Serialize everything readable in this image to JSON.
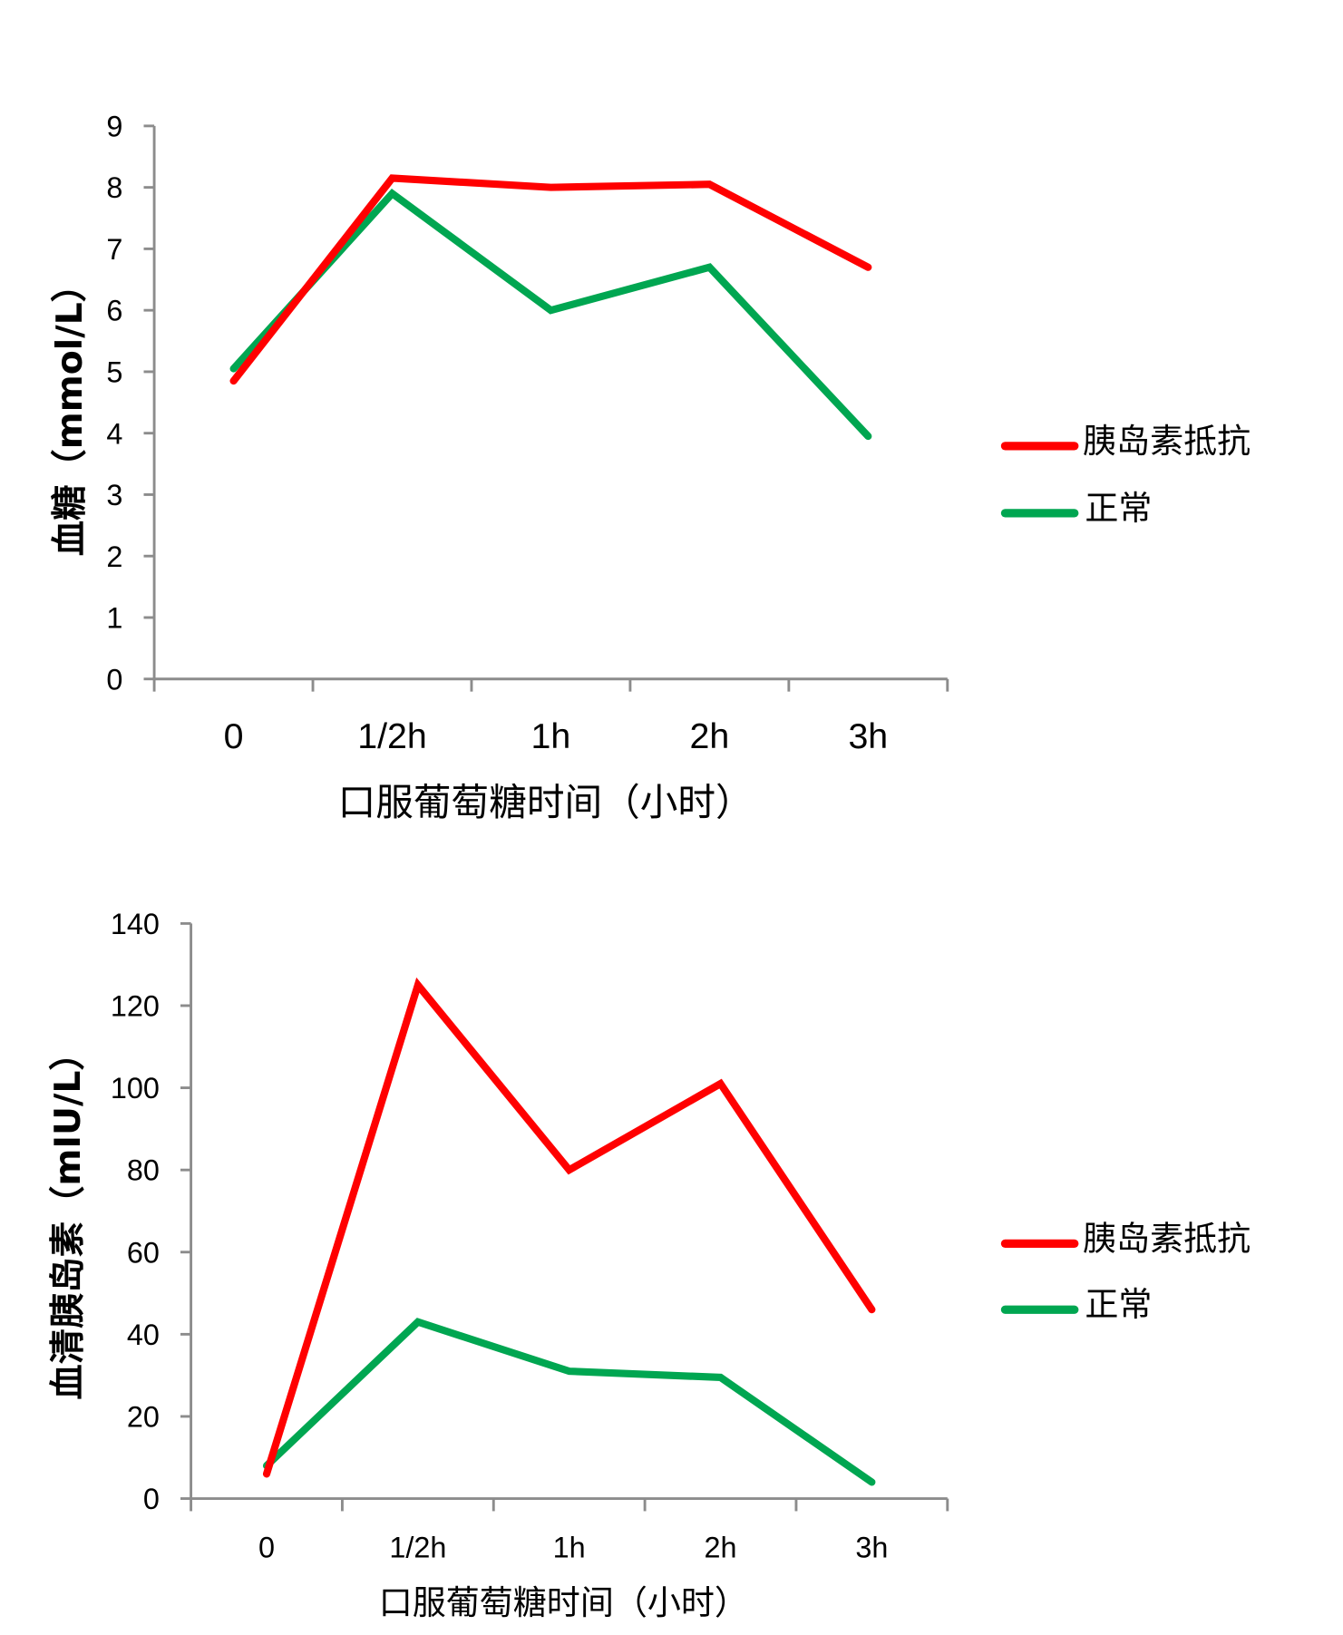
{
  "chart_data": [
    {
      "type": "line",
      "title": "",
      "xlabel": "口服葡萄糖时间（小时）",
      "ylabel": "血糖（mmol/L）",
      "categories": [
        "0",
        "1/2h",
        "1h",
        "2h",
        "3h"
      ],
      "ylim": [
        0,
        9
      ],
      "yticks": [
        "0",
        "1",
        "2",
        "3",
        "4",
        "5",
        "6",
        "7",
        "8",
        "9"
      ],
      "grid": false,
      "legend_position": "right",
      "series": [
        {
          "name": "胰岛素抵抗",
          "color": "#ff0000",
          "values": [
            4.85,
            8.15,
            8.0,
            8.05,
            6.7
          ]
        },
        {
          "name": "正常",
          "color": "#00a651",
          "values": [
            5.05,
            7.9,
            6.0,
            6.7,
            3.95
          ]
        }
      ]
    },
    {
      "type": "line",
      "title": "",
      "xlabel": "口服葡萄糖时间（小时）",
      "ylabel": "血清胰岛素（mIU/L）",
      "categories": [
        "0",
        "1/2h",
        "1h",
        "2h",
        "3h"
      ],
      "ylim": [
        0,
        140
      ],
      "yticks": [
        "0",
        "20",
        "40",
        "60",
        "80",
        "100",
        "120",
        "140"
      ],
      "grid": false,
      "legend_position": "right",
      "series": [
        {
          "name": "胰岛素抵抗",
          "color": "#ff0000",
          "values": [
            6,
            125,
            80,
            101,
            46
          ]
        },
        {
          "name": "正常",
          "color": "#00a651",
          "values": [
            8,
            43,
            31,
            29.5,
            4
          ]
        }
      ]
    }
  ],
  "top": {
    "ylabel": "血糖（mmol/L）",
    "xlabel": "口服葡萄糖时间（小时）",
    "yticks": [
      "0",
      "1",
      "2",
      "3",
      "4",
      "5",
      "6",
      "7",
      "8",
      "9"
    ],
    "categories": [
      "0",
      "1/2h",
      "1h",
      "2h",
      "3h"
    ],
    "legend": [
      "胰岛素抵抗",
      "正常"
    ]
  },
  "bottom": {
    "ylabel": "血清胰岛素（mIU/L）",
    "xlabel": "口服葡萄糖时间（小时）",
    "yticks": [
      "0",
      "20",
      "40",
      "60",
      "80",
      "100",
      "120",
      "140"
    ],
    "categories": [
      "0",
      "1/2h",
      "1h",
      "2h",
      "3h"
    ],
    "legend": [
      "胰岛素抵抗",
      "正常"
    ]
  },
  "colors": {
    "resistance": "#ff0000",
    "normal": "#00a651",
    "axis": "#8c8c8c"
  }
}
